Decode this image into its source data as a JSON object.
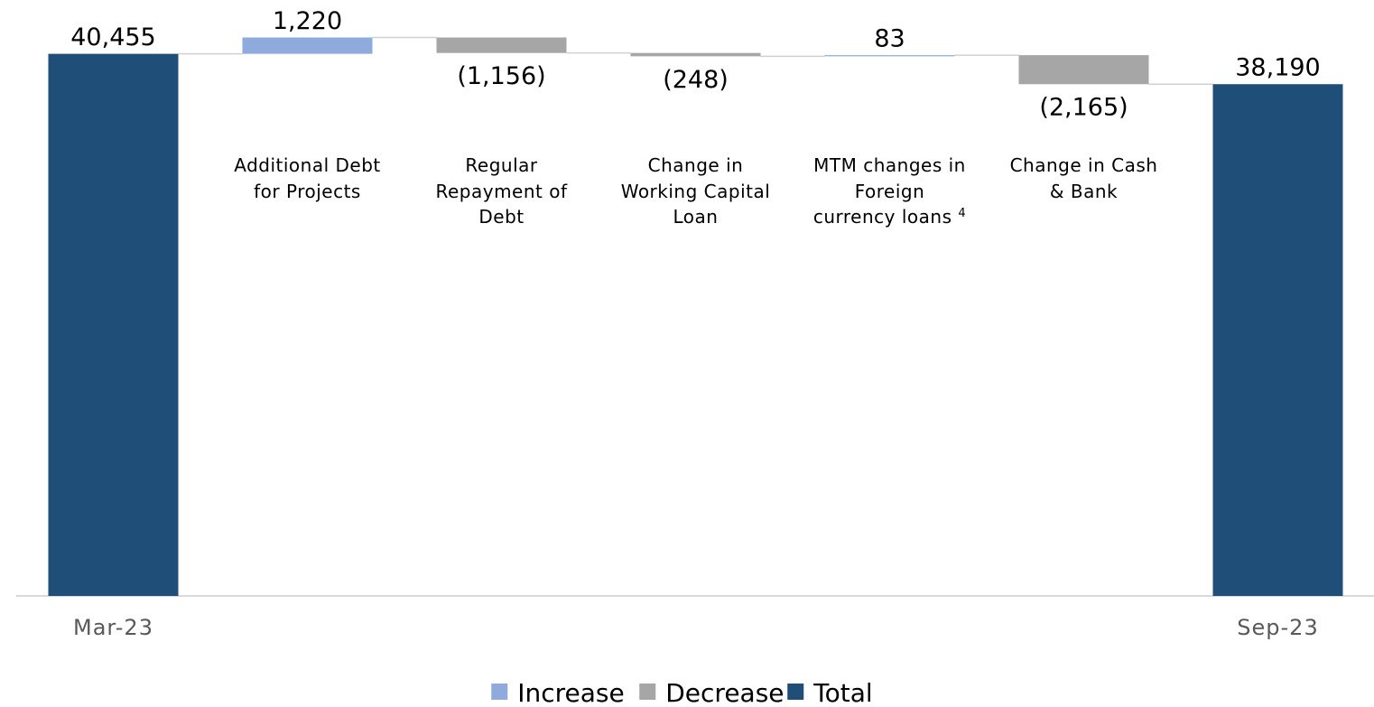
{
  "chart_data": {
    "type": "waterfall",
    "categories": [
      "Mar-23",
      "Additional Debt for Projects",
      "Regular Repayment of Debt",
      "Change in Working Capital Loan",
      "MTM changes in Foreign currency loans",
      "Change in Cash & Bank",
      "Sep-23"
    ],
    "category_notes": [
      null,
      null,
      null,
      null,
      "4",
      null,
      null
    ],
    "values": [
      40455,
      1220,
      -1156,
      -248,
      83,
      -2165,
      38190
    ],
    "value_labels": [
      "40,455",
      "1,220",
      "(1,156)",
      "(248)",
      "83",
      "(2,165)",
      "38,190"
    ],
    "kinds": [
      "Total",
      "Increase",
      "Decrease",
      "Decrease",
      "Increase",
      "Decrease",
      "Total"
    ],
    "legend": [
      {
        "name": "Increase",
        "color": "#8faadc"
      },
      {
        "name": "Decrease",
        "color": "#a6a6a6"
      },
      {
        "name": "Total",
        "color": "#1f4e79"
      }
    ],
    "ylim": [
      0,
      44000
    ]
  }
}
